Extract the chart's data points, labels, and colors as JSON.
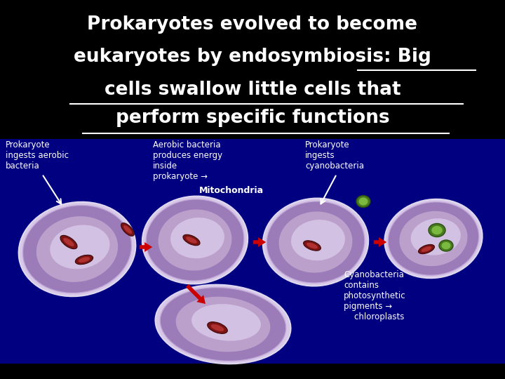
{
  "bg_color": "#000000",
  "diagram_bg": "#000080",
  "title_line1": "Prokaryotes evolved to become",
  "title_line2": "eukaryotes by endosymbiosis: Big",
  "title_line3": "cells swallow little cells that",
  "title_line4": "perform specific functions",
  "label1": "Prokaryote\ningests aerobic\nbacteria",
  "label2": "Aerobic bacteria\nproduces energy\ninside\nprokaryote →",
  "label3": "Mitochondria",
  "label4": "Prokaryote\ningests\ncyanobacteria",
  "label5": "Cyanobacteria\ncontains\nphotosynthetic\npigments →\n    chloroplasts",
  "title_fontsize": 19,
  "label_fontsize": 8.5,
  "title_color": "#FFFFFF",
  "label_color": "#FFFFFF",
  "arrow_color": "#CC0000",
  "cell_outer": "#9B7BB8",
  "cell_mid": "#C8A8D8",
  "cell_inner": "#E0D0F0",
  "mito_outer": "#7B1515",
  "mito_inner": "#B03030",
  "cyano_outer": "#4A7A20",
  "cyano_inner": "#7AB840"
}
